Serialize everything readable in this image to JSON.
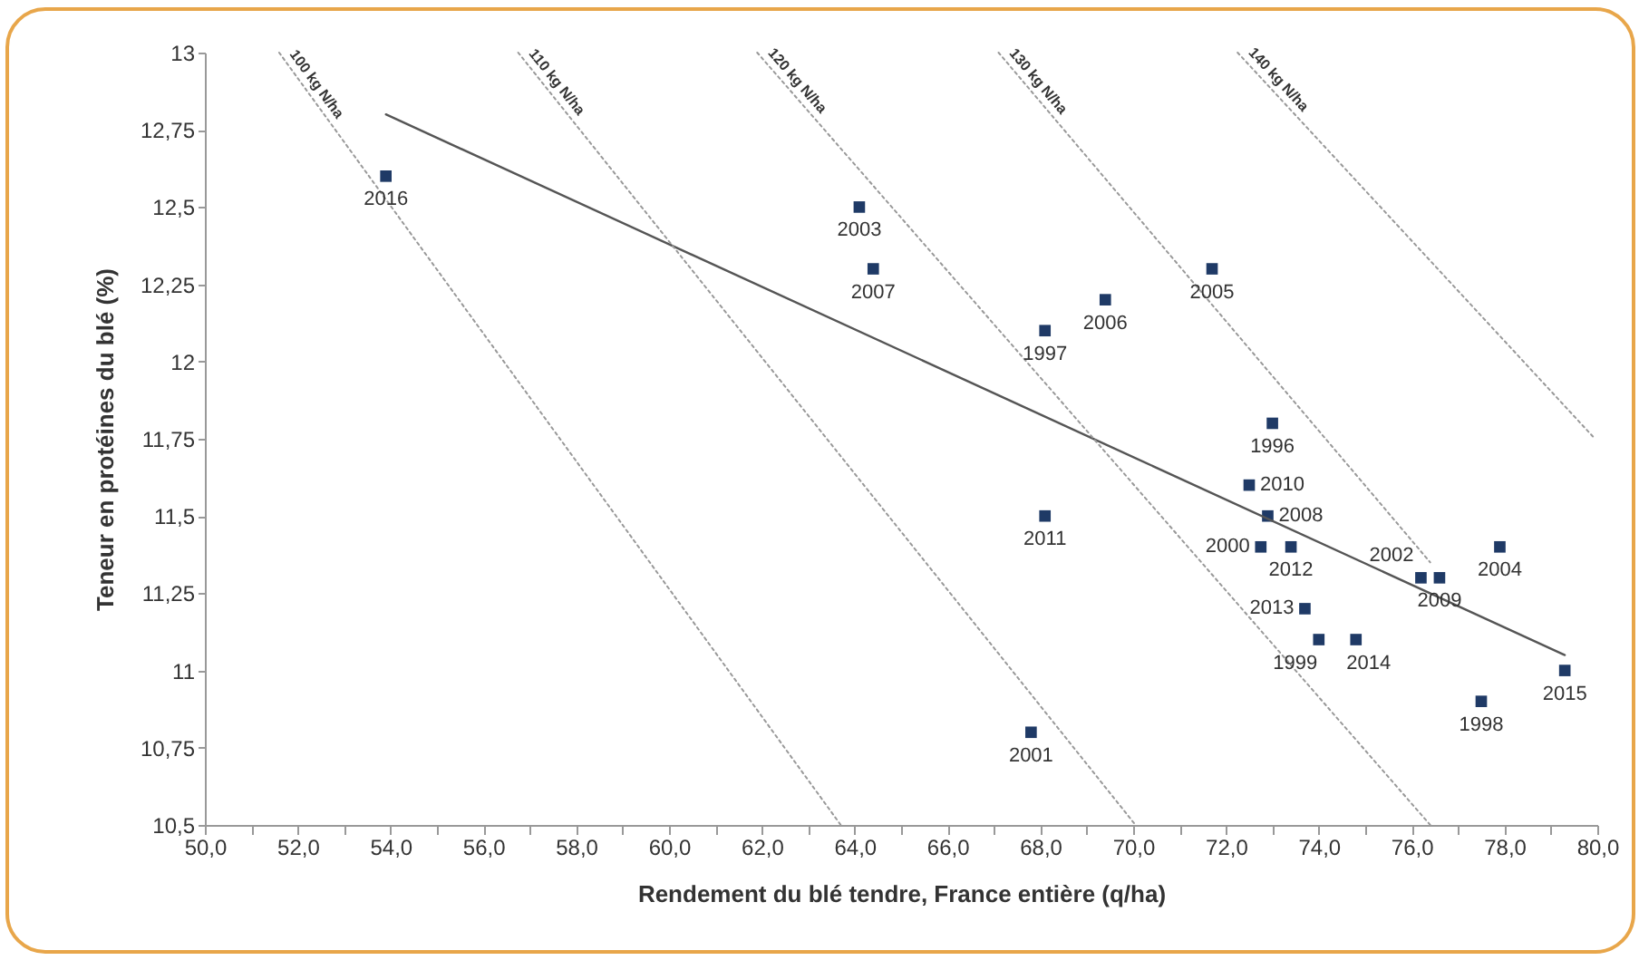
{
  "chart_data": {
    "type": "scatter",
    "xlabel": "Rendement du blé tendre, France entière (q/ha)",
    "ylabel": "Teneur en protéines du blé (%)",
    "xlim": [
      50,
      80
    ],
    "ylim": [
      10.5,
      13
    ],
    "xticks": [
      {
        "value": 50,
        "label": "50,0"
      },
      {
        "value": 51,
        "label": null
      },
      {
        "value": 52,
        "label": "52,0"
      },
      {
        "value": 53,
        "label": null
      },
      {
        "value": 54,
        "label": "54,0"
      },
      {
        "value": 55,
        "label": null
      },
      {
        "value": 56,
        "label": "56,0"
      },
      {
        "value": 57,
        "label": null
      },
      {
        "value": 58,
        "label": "58,0"
      },
      {
        "value": 59,
        "label": null
      },
      {
        "value": 60,
        "label": "60,0"
      },
      {
        "value": 61,
        "label": null
      },
      {
        "value": 62,
        "label": "62,0"
      },
      {
        "value": 63,
        "label": null
      },
      {
        "value": 64,
        "label": "64,0"
      },
      {
        "value": 65,
        "label": null
      },
      {
        "value": 66,
        "label": "66,0"
      },
      {
        "value": 67,
        "label": null
      },
      {
        "value": 68,
        "label": "68,0"
      },
      {
        "value": 69,
        "label": null
      },
      {
        "value": 70,
        "label": "70,0"
      },
      {
        "value": 71,
        "label": null
      },
      {
        "value": 72,
        "label": "72,0"
      },
      {
        "value": 73,
        "label": null
      },
      {
        "value": 74,
        "label": "74,0"
      },
      {
        "value": 75,
        "label": null
      },
      {
        "value": 76,
        "label": "76,0"
      },
      {
        "value": 77,
        "label": null
      },
      {
        "value": 78,
        "label": "78,0"
      },
      {
        "value": 79,
        "label": null
      },
      {
        "value": 80,
        "label": "80,0"
      }
    ],
    "yticks": [
      {
        "value": 10.5,
        "label": "10,5"
      },
      {
        "value": 10.75,
        "label": "10,75"
      },
      {
        "value": 11,
        "label": "11"
      },
      {
        "value": 11.25,
        "label": "11,25"
      },
      {
        "value": 11.5,
        "label": "11,5"
      },
      {
        "value": 11.75,
        "label": "11,75"
      },
      {
        "value": 12,
        "label": "12"
      },
      {
        "value": 12.25,
        "label": "12,25"
      },
      {
        "value": 12.5,
        "label": "12,5"
      },
      {
        "value": 12.75,
        "label": "12,75"
      },
      {
        "value": 13,
        "label": "13"
      }
    ],
    "annotations": [
      {
        "text": "2016",
        "x": 53.9,
        "y": 12.6
      },
      {
        "text": "2003",
        "x": 64.1,
        "y": 12.5
      },
      {
        "text": "2007",
        "x": 64.4,
        "y": 12.3
      },
      {
        "text": "2005",
        "x": 71.7,
        "y": 12.3
      },
      {
        "text": "2006",
        "x": 69.4,
        "y": 12.2
      },
      {
        "text": "1997",
        "x": 68.1,
        "y": 12.1
      },
      {
        "text": "1996",
        "x": 73.0,
        "y": 11.8
      },
      {
        "text": "2010",
        "x": 72.5,
        "y": 11.6
      },
      {
        "text": "2008",
        "x": 72.9,
        "y": 11.5
      },
      {
        "text": "2000",
        "x": 72.75,
        "y": 11.4
      },
      {
        "text": "2012",
        "x": 73.4,
        "y": 11.4
      },
      {
        "text": "2013",
        "x": 73.7,
        "y": 11.2
      },
      {
        "text": "1999",
        "x": 74.0,
        "y": 11.1
      },
      {
        "text": "2014",
        "x": 74.8,
        "y": 11.1
      },
      {
        "text": "2002",
        "x": 76.2,
        "y": 11.3
      },
      {
        "text": "2009",
        "x": 76.6,
        "y": 11.3
      },
      {
        "text": "2004",
        "x": 77.9,
        "y": 11.4
      },
      {
        "text": "1998",
        "x": 77.5,
        "y": 10.9
      },
      {
        "text": "2015",
        "x": 79.3,
        "y": 11.0
      },
      {
        "text": "2011",
        "x": 68.1,
        "y": 11.5
      },
      {
        "text": "2001",
        "x": 67.8,
        "y": 10.8
      }
    ],
    "series": [
      {
        "type": "scatter",
        "color": "#1f3a66",
        "marker": "square",
        "x": [
          53.9,
          64.1,
          64.4,
          71.7,
          69.4,
          68.1,
          73.0,
          72.5,
          72.9,
          72.75,
          73.4,
          73.7,
          74.0,
          74.8,
          76.2,
          76.6,
          77.9,
          77.5,
          79.3,
          68.1,
          67.8
        ],
        "values": [
          12.6,
          12.5,
          12.3,
          12.3,
          12.2,
          12.1,
          11.8,
          11.6,
          11.5,
          11.4,
          11.4,
          11.2,
          11.1,
          11.1,
          11.3,
          11.3,
          11.4,
          10.9,
          11.0,
          11.5,
          10.8
        ]
      },
      {
        "type": "line",
        "color": "#555555",
        "marker": "none",
        "line_style": "solid",
        "x": [
          53.9,
          79.3
        ],
        "values": [
          12.8,
          11.05
        ]
      },
      {
        "type": "line",
        "name": "100 kg N/ha",
        "color": "#999999",
        "marker": "none",
        "line_style": "dotted",
        "x": [
          51.6,
          63.7
        ],
        "values": [
          13.0,
          10.5
        ]
      },
      {
        "type": "line",
        "name": "110 kg N/ha",
        "color": "#999999",
        "marker": "none",
        "line_style": "dotted",
        "x": [
          56.75,
          70.05
        ],
        "values": [
          13.0,
          10.5
        ]
      },
      {
        "type": "line",
        "name": "120 kg N/ha",
        "color": "#999999",
        "marker": "none",
        "line_style": "dotted",
        "x": [
          61.9,
          76.4
        ],
        "values": [
          13.0,
          10.5
        ]
      },
      {
        "type": "line",
        "name": "130 kg N/ha",
        "color": "#999999",
        "marker": "none",
        "line_style": "dotted",
        "x": [
          67.1,
          76.4
        ],
        "values": [
          13.0,
          11.35
        ]
      },
      {
        "type": "line",
        "name": "140 kg N/ha",
        "color": "#999999",
        "marker": "none",
        "line_style": "dotted",
        "x": [
          72.25,
          79.95
        ],
        "values": [
          13.0,
          11.75
        ]
      }
    ]
  }
}
